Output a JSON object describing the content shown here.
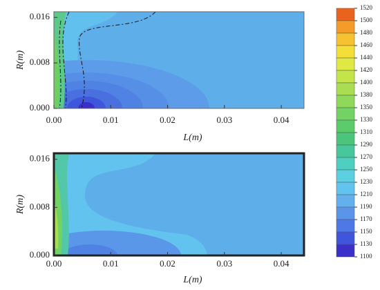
{
  "chart_data": [
    {
      "type": "contour",
      "xlabel": "L(m)",
      "ylabel": "R(m)",
      "xlim": [
        0,
        0.044
      ],
      "ylim": [
        0,
        0.017
      ],
      "xticks": [
        {
          "value": 0,
          "label": "0.00"
        },
        0.01,
        0.02,
        0.03,
        0.04
      ],
      "yticks": [
        {
          "value": 0,
          "label": "0.000"
        },
        {
          "value": 0.008,
          "label": "0.008"
        },
        {
          "value": 0.016,
          "label": "0.016"
        }
      ]
    },
    {
      "type": "contour",
      "xlabel": "L(m)",
      "ylabel": "R(m)",
      "xlim": [
        0,
        0.044
      ],
      "ylim": [
        0,
        0.017
      ],
      "xticks": [
        {
          "value": 0,
          "label": "0.00"
        },
        0.01,
        0.02,
        0.03,
        0.04
      ],
      "yticks": [
        {
          "value": 0,
          "label": "0.000"
        },
        {
          "value": 0.008,
          "label": "0.008"
        },
        {
          "value": 0.016,
          "label": "0.016"
        }
      ]
    },
    {
      "type": "colorbar",
      "levels": [
        1520,
        1500,
        1480,
        1460,
        1440,
        1420,
        1400,
        1380,
        1350,
        1330,
        1310,
        1290,
        1270,
        1250,
        1230,
        1210,
        1190,
        1170,
        1150,
        1130,
        1100
      ],
      "colors": [
        "#e8641e",
        "#f59b2a",
        "#f7c231",
        "#f4df3a",
        "#e0e844",
        "#c4e54a",
        "#a9de52",
        "#8fd85a",
        "#72d263",
        "#5ccb6c",
        "#4cc47a",
        "#48c79a",
        "#4fcfc0",
        "#5ccfe0",
        "#63c3ef",
        "#64b0ed",
        "#5b95ea",
        "#4e78e6",
        "#3f55dc",
        "#3a2fc8"
      ]
    }
  ]
}
